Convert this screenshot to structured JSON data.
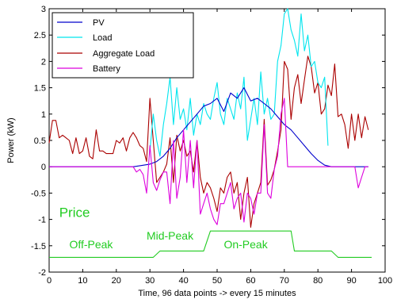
{
  "chart_data": {
    "type": "line",
    "xlabel": "Time, 96 data points -> every 15 minutes",
    "ylabel": "Power (kW)",
    "xlim": [
      0,
      100
    ],
    "ylim": [
      -2,
      3
    ],
    "xticks": [
      0,
      10,
      20,
      30,
      40,
      50,
      60,
      70,
      80,
      90,
      100
    ],
    "yticks": [
      -2,
      -1.5,
      -1,
      -0.5,
      0,
      0.5,
      1,
      1.5,
      2,
      2.5,
      3
    ],
    "grid": false,
    "legend_position": "top-left",
    "series": [
      {
        "name": "PV",
        "color": "#0000cc",
        "x": [
          0,
          25,
          27,
          30,
          32,
          34,
          36,
          38,
          40,
          42,
          44,
          46,
          48,
          50,
          52,
          54,
          56,
          58,
          60,
          62,
          64,
          66,
          68,
          70,
          72,
          74,
          76,
          78,
          80,
          82,
          84,
          86,
          88,
          90,
          92,
          94,
          95
        ],
        "y": [
          0,
          0,
          0.02,
          0.05,
          0.1,
          0.2,
          0.35,
          0.55,
          0.7,
          0.85,
          1.0,
          1.15,
          1.2,
          1.3,
          1.05,
          1.4,
          1.3,
          1.5,
          1.25,
          1.3,
          1.2,
          1.1,
          0.95,
          0.8,
          0.7,
          0.55,
          0.4,
          0.25,
          0.12,
          0.03,
          0,
          0,
          0,
          0,
          0,
          0,
          0
        ]
      },
      {
        "name": "Load",
        "color": "#00e5ee",
        "x": [
          30,
          31,
          32,
          33,
          34,
          35,
          36,
          37,
          38,
          39,
          40,
          41,
          42,
          43,
          44,
          45,
          46,
          47,
          48,
          49,
          50,
          51,
          52,
          53,
          54,
          55,
          56,
          57,
          58,
          59,
          60,
          61,
          62,
          63,
          64,
          65,
          66,
          67,
          68,
          69,
          70,
          71,
          72,
          73,
          74,
          75,
          76,
          77,
          78,
          79,
          80,
          81,
          82,
          83
        ],
        "y": [
          0.3,
          1.0,
          0.5,
          0.2,
          0.8,
          1.2,
          1.7,
          0.8,
          1.5,
          0.9,
          1.1,
          0.7,
          1.3,
          0.6,
          1.0,
          0.8,
          1.2,
          1.0,
          0.9,
          1.3,
          1.6,
          1.0,
          0.8,
          1.3,
          1.1,
          0.9,
          1.4,
          1.1,
          1.7,
          0.5,
          0.9,
          1.3,
          0.8,
          1.8,
          1.0,
          1.3,
          0.9,
          1.0,
          2.0,
          2.3,
          2.9,
          3.0,
          2.6,
          2.4,
          2.1,
          2.9,
          2.2,
          2.5,
          1.9,
          2.0,
          1.6,
          1.5,
          1.7,
          0.4
        ]
      },
      {
        "name": "Aggregate Load",
        "color": "#aa0000",
        "x": [
          0,
          1,
          2,
          3,
          4,
          5,
          6,
          7,
          8,
          9,
          10,
          11,
          12,
          13,
          14,
          15,
          16,
          17,
          18,
          19,
          20,
          21,
          22,
          23,
          24,
          25,
          26,
          27,
          28,
          29,
          30,
          31,
          32,
          33,
          34,
          35,
          36,
          37,
          38,
          39,
          40,
          41,
          42,
          43,
          44,
          45,
          46,
          47,
          48,
          49,
          50,
          51,
          52,
          53,
          54,
          55,
          56,
          57,
          58,
          59,
          60,
          61,
          62,
          63,
          64,
          65,
          66,
          67,
          68,
          69,
          70,
          71,
          72,
          73,
          74,
          75,
          76,
          77,
          78,
          79,
          80,
          81,
          82,
          83,
          84,
          85,
          86,
          87,
          88,
          89,
          90,
          91,
          92,
          93,
          94,
          95
        ],
        "y": [
          0.45,
          0.88,
          0.88,
          0.55,
          0.6,
          0.55,
          0.5,
          0.25,
          0.55,
          0.25,
          0.3,
          0.55,
          0.2,
          0.15,
          0.7,
          0.3,
          0.3,
          0.25,
          0.25,
          0.25,
          0.5,
          0.45,
          0.55,
          0.3,
          0.55,
          0.65,
          0.55,
          0.4,
          0.35,
          0.1,
          1.3,
          0.5,
          -0.3,
          -0.2,
          -0.1,
          0.05,
          0.55,
          -0.3,
          0.6,
          0.3,
          0.5,
          0.2,
          0.3,
          -0.1,
          0.5,
          -0.2,
          -0.5,
          -0.3,
          -0.4,
          -0.6,
          -0.85,
          -0.4,
          -0.5,
          -0.2,
          -0.1,
          -0.5,
          -0.3,
          -1.0,
          -0.5,
          -0.2,
          -1.15,
          -0.7,
          -0.5,
          -0.3,
          0.9,
          -0.35,
          -0.25,
          -0.05,
          0.3,
          0.7,
          2.0,
          1.85,
          0.9,
          1.5,
          1.75,
          1.2,
          1.65,
          2.1,
          1.9,
          1.4,
          1.6,
          1.0,
          1.1,
          1.55,
          1.35,
          1.95,
          0.95,
          1.0,
          0.8,
          0.35,
          1.0,
          0.5,
          1.0,
          0.55,
          0.95,
          0.7
        ]
      },
      {
        "name": "Battery",
        "color": "#dd00dd",
        "x": [
          0,
          25,
          26,
          27,
          28,
          29,
          30,
          31,
          32,
          33,
          34,
          35,
          36,
          37,
          38,
          39,
          40,
          41,
          42,
          43,
          44,
          45,
          46,
          47,
          48,
          49,
          50,
          51,
          52,
          53,
          54,
          55,
          56,
          57,
          58,
          59,
          60,
          61,
          62,
          63,
          64,
          65,
          66,
          67,
          68,
          69,
          70,
          71,
          72,
          73,
          74,
          75,
          76,
          77,
          78,
          79,
          80,
          81,
          82,
          83,
          84,
          85,
          86,
          87,
          88,
          89,
          90,
          91,
          92,
          93,
          94,
          95
        ],
        "y": [
          0,
          0,
          -0.1,
          -0.05,
          -0.15,
          -0.5,
          0.4,
          -0.3,
          -0.45,
          -0.25,
          -0.1,
          -0.1,
          -0.7,
          0.5,
          -0.6,
          -0.2,
          0.7,
          -0.3,
          0.5,
          -0.4,
          0.5,
          -0.9,
          -0.7,
          -0.5,
          -0.8,
          -1.0,
          -1.1,
          -0.7,
          -0.7,
          -0.5,
          -0.3,
          -0.8,
          -0.6,
          -0.5,
          -1.05,
          -0.5,
          -0.6,
          -0.9,
          -0.5,
          -0.5,
          0.8,
          -0.5,
          -0.6,
          -0.05,
          0.2,
          1.0,
          1.3,
          0.0,
          0,
          0,
          0,
          0,
          0,
          0,
          0,
          0,
          0,
          0,
          0,
          0,
          0,
          0,
          0,
          0,
          0,
          0,
          0,
          0,
          -0.4,
          -0.2,
          0,
          0
        ]
      },
      {
        "name": "",
        "color": "#22cc22",
        "x": [
          0,
          31,
          33,
          46,
          48,
          68,
          70,
          72,
          73,
          84,
          86,
          96
        ],
        "y": [
          -1.72,
          -1.72,
          -1.6,
          -1.6,
          -1.22,
          -1.22,
          -1.22,
          -1.22,
          -1.6,
          -1.6,
          -1.72,
          -1.72
        ]
      }
    ],
    "annotations": [
      {
        "text": "Price",
        "x": 3,
        "y": -0.95
      },
      {
        "text": "Off-Peak",
        "x": 6,
        "y": -1.55
      },
      {
        "text": "Mid-Peak",
        "x": 29,
        "y": -1.38
      },
      {
        "text": "On-Peak",
        "x": 52,
        "y": -1.55
      }
    ]
  }
}
